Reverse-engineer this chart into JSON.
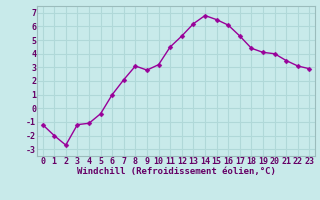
{
  "x": [
    0,
    1,
    2,
    3,
    4,
    5,
    6,
    7,
    8,
    9,
    10,
    11,
    12,
    13,
    14,
    15,
    16,
    17,
    18,
    19,
    20,
    21,
    22,
    23
  ],
  "y": [
    -1.2,
    -2.0,
    -2.7,
    -1.2,
    -1.1,
    -0.4,
    1.0,
    2.1,
    3.1,
    2.8,
    3.2,
    4.5,
    5.3,
    6.2,
    6.8,
    6.5,
    6.1,
    5.3,
    4.4,
    4.1,
    4.0,
    3.5,
    3.1,
    2.9
  ],
  "line_color": "#990099",
  "marker": "D",
  "marker_size": 2.5,
  "bg_color": "#c8eaea",
  "grid_color": "#b0d8d8",
  "xlabel": "Windchill (Refroidissement éolien,°C)",
  "ylim": [
    -3.5,
    7.5
  ],
  "xlim": [
    -0.5,
    23.5
  ],
  "yticks": [
    -3,
    -2,
    -1,
    0,
    1,
    2,
    3,
    4,
    5,
    6,
    7
  ],
  "xticks": [
    0,
    1,
    2,
    3,
    4,
    5,
    6,
    7,
    8,
    9,
    10,
    11,
    12,
    13,
    14,
    15,
    16,
    17,
    18,
    19,
    20,
    21,
    22,
    23
  ],
  "xlabel_fontsize": 6.5,
  "tick_fontsize": 6.0,
  "line_width": 1.0
}
